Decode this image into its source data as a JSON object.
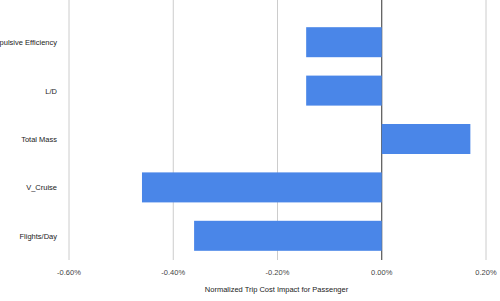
{
  "chart_data": {
    "type": "bar",
    "orientation": "horizontal",
    "x_label": "Normalized Trip Cost Impact for Passenger",
    "categories": [
      "Propulsive Efficiency",
      "L/D",
      "Total Mass",
      "V_Cruise",
      "Flights/Day"
    ],
    "values": [
      -0.145,
      -0.145,
      0.17,
      -0.46,
      -0.36
    ],
    "color": "#4a86e8",
    "xlim": [
      -0.6,
      0.2
    ],
    "xticks": [
      {
        "value": -0.6,
        "label": "-0.60%"
      },
      {
        "value": -0.4,
        "label": "-0.40%"
      },
      {
        "value": -0.2,
        "label": "-0.20%"
      },
      {
        "value": 0,
        "label": "0.00%"
      },
      {
        "value": 0.2,
        "label": "0.20%"
      }
    ],
    "grid": true
  }
}
